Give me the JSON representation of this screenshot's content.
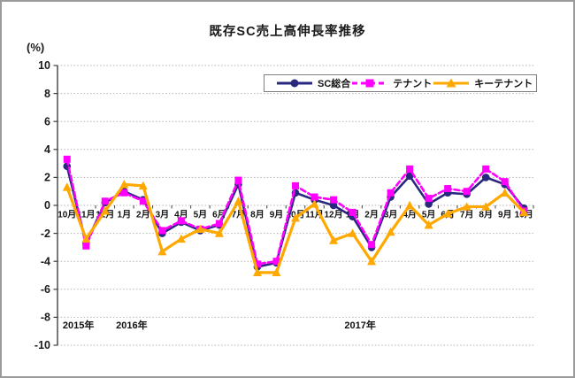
{
  "window": {
    "background": "#ffffff",
    "border_color": "#9b9b9b"
  },
  "chart_data": {
    "type": "line",
    "title": "既存SC売上高伸長率推移",
    "y_unit_label": "(%)",
    "xlabel": "",
    "ylabel": "(%)",
    "ylim": [
      -10,
      10
    ],
    "y_tick_step": 2,
    "y_tick_labels": [
      "10",
      "8",
      "6",
      "4",
      "2",
      "0",
      "-2",
      "-4",
      "-6",
      "-8",
      "-10"
    ],
    "grid": "horizontal dotted gridlines, on",
    "legend_position": "top inside plot, boxed",
    "categories": [
      "10月",
      "11月",
      "12月",
      "1月",
      "2月",
      "3月",
      "4月",
      "5月",
      "6月",
      "7月",
      "8月",
      "9月",
      "10月",
      "11月",
      "12月",
      "1月",
      "2月",
      "3月",
      "4月",
      "5月",
      "6月",
      "7月",
      "8月",
      "9月",
      "10月"
    ],
    "year_labels": [
      {
        "label": "2015年",
        "at_category_index": 0.6
      },
      {
        "label": "2016年",
        "at_category_index": 3.4
      },
      {
        "label": "2017年",
        "at_category_index": 15.4
      }
    ],
    "series": [
      {
        "name": "SC総合",
        "color": "#28287E",
        "marker": "circle",
        "line": "solid",
        "values": [
          2.8,
          -2.7,
          0.2,
          1.0,
          0.4,
          -2.0,
          -1.2,
          -1.8,
          -1.4,
          1.5,
          -4.4,
          -4.1,
          0.9,
          0.4,
          0.0,
          -0.8,
          -3.0,
          0.6,
          2.1,
          0.1,
          0.9,
          0.8,
          2.0,
          1.5,
          -0.2
        ]
      },
      {
        "name": "テナント",
        "color": "#FF00FF",
        "marker": "square",
        "line": "dashed",
        "values": [
          3.3,
          -2.9,
          0.3,
          0.9,
          0.3,
          -1.8,
          -1.1,
          -1.7,
          -1.3,
          1.8,
          -4.2,
          -4.0,
          1.4,
          0.6,
          0.4,
          -0.5,
          -2.8,
          0.9,
          2.6,
          0.5,
          1.2,
          1.0,
          2.6,
          1.7,
          -0.4
        ]
      },
      {
        "name": "キーテナント",
        "color": "#FFA800",
        "marker": "triangle",
        "line": "solid",
        "values": [
          1.3,
          -2.4,
          -0.4,
          1.5,
          1.4,
          -3.3,
          -2.4,
          -1.7,
          -2.0,
          0.3,
          -4.8,
          -4.8,
          -0.9,
          0.1,
          -2.5,
          -2.0,
          -4.0,
          -1.9,
          0.0,
          -1.4,
          -0.6,
          -0.1,
          -0.1,
          0.9,
          -0.5
        ]
      }
    ],
    "text_color": "#1a1a1a",
    "gridline_color": "#b3b3b3",
    "axis_color": "#404040"
  }
}
